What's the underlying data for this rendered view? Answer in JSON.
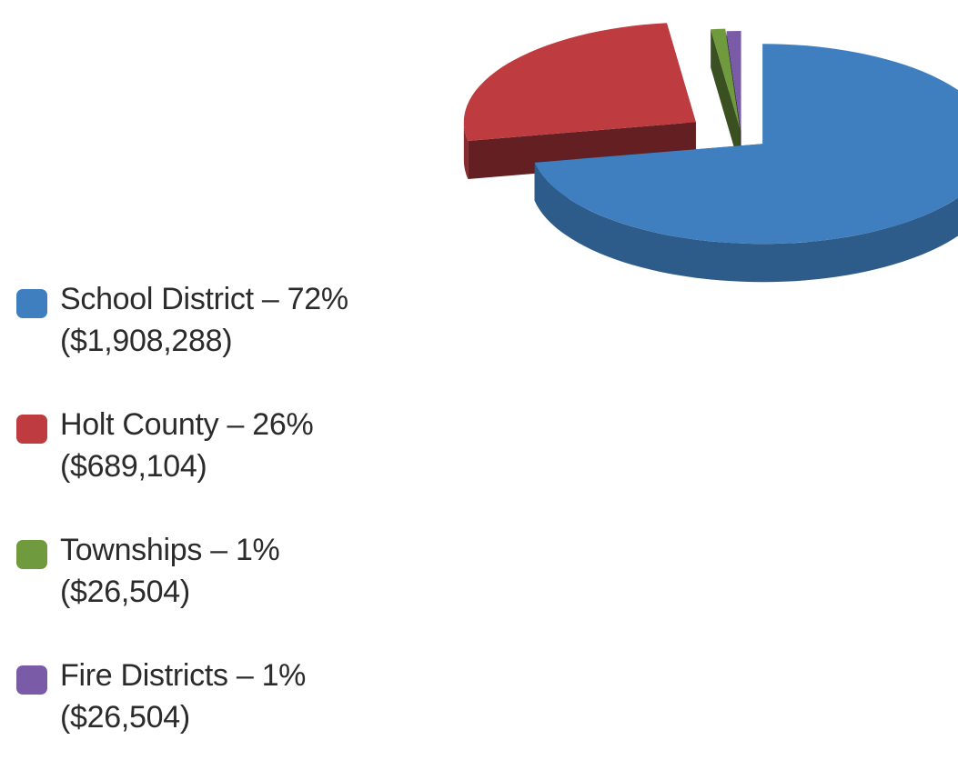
{
  "chart_data": {
    "type": "pie",
    "three_d": true,
    "exploded": true,
    "legend_position": "bottom-left",
    "slices": [
      {
        "label": "School District – 72%",
        "amount": "($1,908,288)",
        "percent": 72,
        "value": 1908288,
        "color": "#3f7fc0"
      },
      {
        "label": "Holt County – 26%",
        "amount": "($689,104)",
        "percent": 26,
        "value": 689104,
        "color": "#be3b3f"
      },
      {
        "label": "Townships – 1%",
        "amount": "($26,504)",
        "percent": 1,
        "value": 26504,
        "color": "#6f9a3d"
      },
      {
        "label": "Fire Districts – 1%",
        "amount": "($26,504)",
        "percent": 1,
        "value": 26504,
        "color": "#7a5ba8"
      }
    ]
  }
}
